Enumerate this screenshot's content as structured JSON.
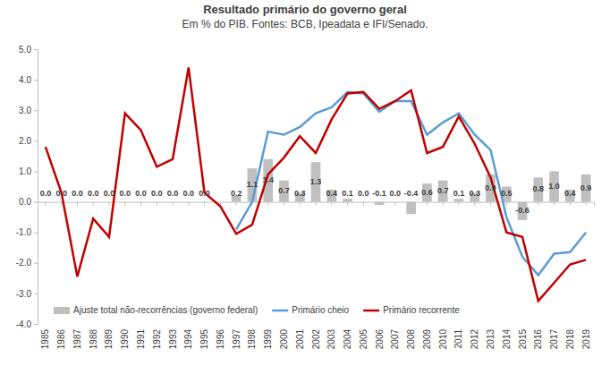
{
  "chart_data": {
    "type": "bar",
    "title": "Resultado primário do governo geral",
    "subtitle": "Em % do PIB. Fontes: BCB, Ipeadata e IFI/Senado.",
    "categories": [
      "1985",
      "1986",
      "1987",
      "1988",
      "1989",
      "1990",
      "1991",
      "1992",
      "1993",
      "1994",
      "1995",
      "1996",
      "1997",
      "1998",
      "1999",
      "2000",
      "2001",
      "2002",
      "2003",
      "2004",
      "2005",
      "2006",
      "2007",
      "2008",
      "2009",
      "2010",
      "2011",
      "2012",
      "2013",
      "2014",
      "2015",
      "2016",
      "2017",
      "2018",
      "2019"
    ],
    "series": [
      {
        "name": "Ajuste total não-recorrências (governo federal)",
        "type": "bar",
        "color": "#bfbfbf",
        "values": [
          0,
          0,
          0,
          0,
          0,
          0,
          0,
          0,
          0,
          0,
          0,
          null,
          0.2,
          1.1,
          1.4,
          0.7,
          0.3,
          1.3,
          0.4,
          0.1,
          0.0,
          -0.1,
          0.0,
          -0.4,
          0.6,
          0.7,
          0.1,
          0.3,
          0.9,
          0.5,
          -0.6,
          0.8,
          1.0,
          0.4,
          0.9
        ],
        "value_labels": [
          "0.0",
          "0.0",
          "0.0",
          "0.0",
          "0.0",
          "0.0",
          "0.0",
          "0.0",
          "0.0",
          "0.0",
          "0.0",
          null,
          "0.2",
          "1.1",
          "1.4",
          "0.7",
          "0.3",
          "1.3",
          "0.4",
          "0.1",
          "0.0",
          "-0.1",
          "0.0",
          "-0.4",
          "0.6",
          "0.7",
          "0.1",
          "0.3",
          "0.9",
          "0.5",
          "-0.6",
          "0.8",
          "1.0",
          "0.4",
          "0.9"
        ]
      },
      {
        "name": "Primário cheio",
        "type": "line",
        "color": "#5b9bd5",
        "line_style": "solid",
        "marker": "none",
        "values": [
          null,
          null,
          null,
          null,
          null,
          null,
          null,
          null,
          null,
          null,
          null,
          null,
          -0.9,
          0.0,
          2.3,
          2.2,
          2.45,
          2.9,
          3.1,
          3.6,
          3.55,
          2.95,
          3.3,
          3.3,
          2.2,
          2.6,
          2.9,
          2.2,
          1.7,
          -0.5,
          -1.8,
          -2.4,
          -1.7,
          -1.65,
          -1.0
        ]
      },
      {
        "name": "Primário recorrente",
        "type": "line",
        "color": "#c00000",
        "line_style": "solid",
        "marker": "none",
        "values": [
          1.8,
          0.3,
          -2.45,
          -0.55,
          -1.15,
          2.9,
          2.35,
          1.15,
          1.4,
          4.4,
          0.3,
          -0.15,
          -1.05,
          -0.75,
          0.9,
          1.45,
          2.15,
          1.6,
          2.7,
          3.55,
          3.6,
          3.05,
          3.3,
          3.65,
          1.6,
          1.8,
          2.8,
          1.9,
          0.8,
          -1.0,
          -1.15,
          -3.25,
          -2.65,
          -2.05,
          -1.9
        ]
      }
    ],
    "ylim": [
      -4,
      5
    ],
    "yticks": [
      {
        "value": -4,
        "label": "-4.0"
      },
      {
        "value": -3,
        "label": "-3.0"
      },
      {
        "value": -2,
        "label": "-2.0"
      },
      {
        "value": -1,
        "label": "-1.0"
      },
      {
        "value": 0,
        "label": "0.0"
      },
      {
        "value": 1,
        "label": "1.0"
      },
      {
        "value": 2,
        "label": "2.0"
      },
      {
        "value": 3,
        "label": "3.0"
      },
      {
        "value": 4,
        "label": "4.0"
      },
      {
        "value": 5,
        "label": "5.0"
      }
    ],
    "grid": false,
    "data_labels": true,
    "legend": "bottom-left"
  }
}
